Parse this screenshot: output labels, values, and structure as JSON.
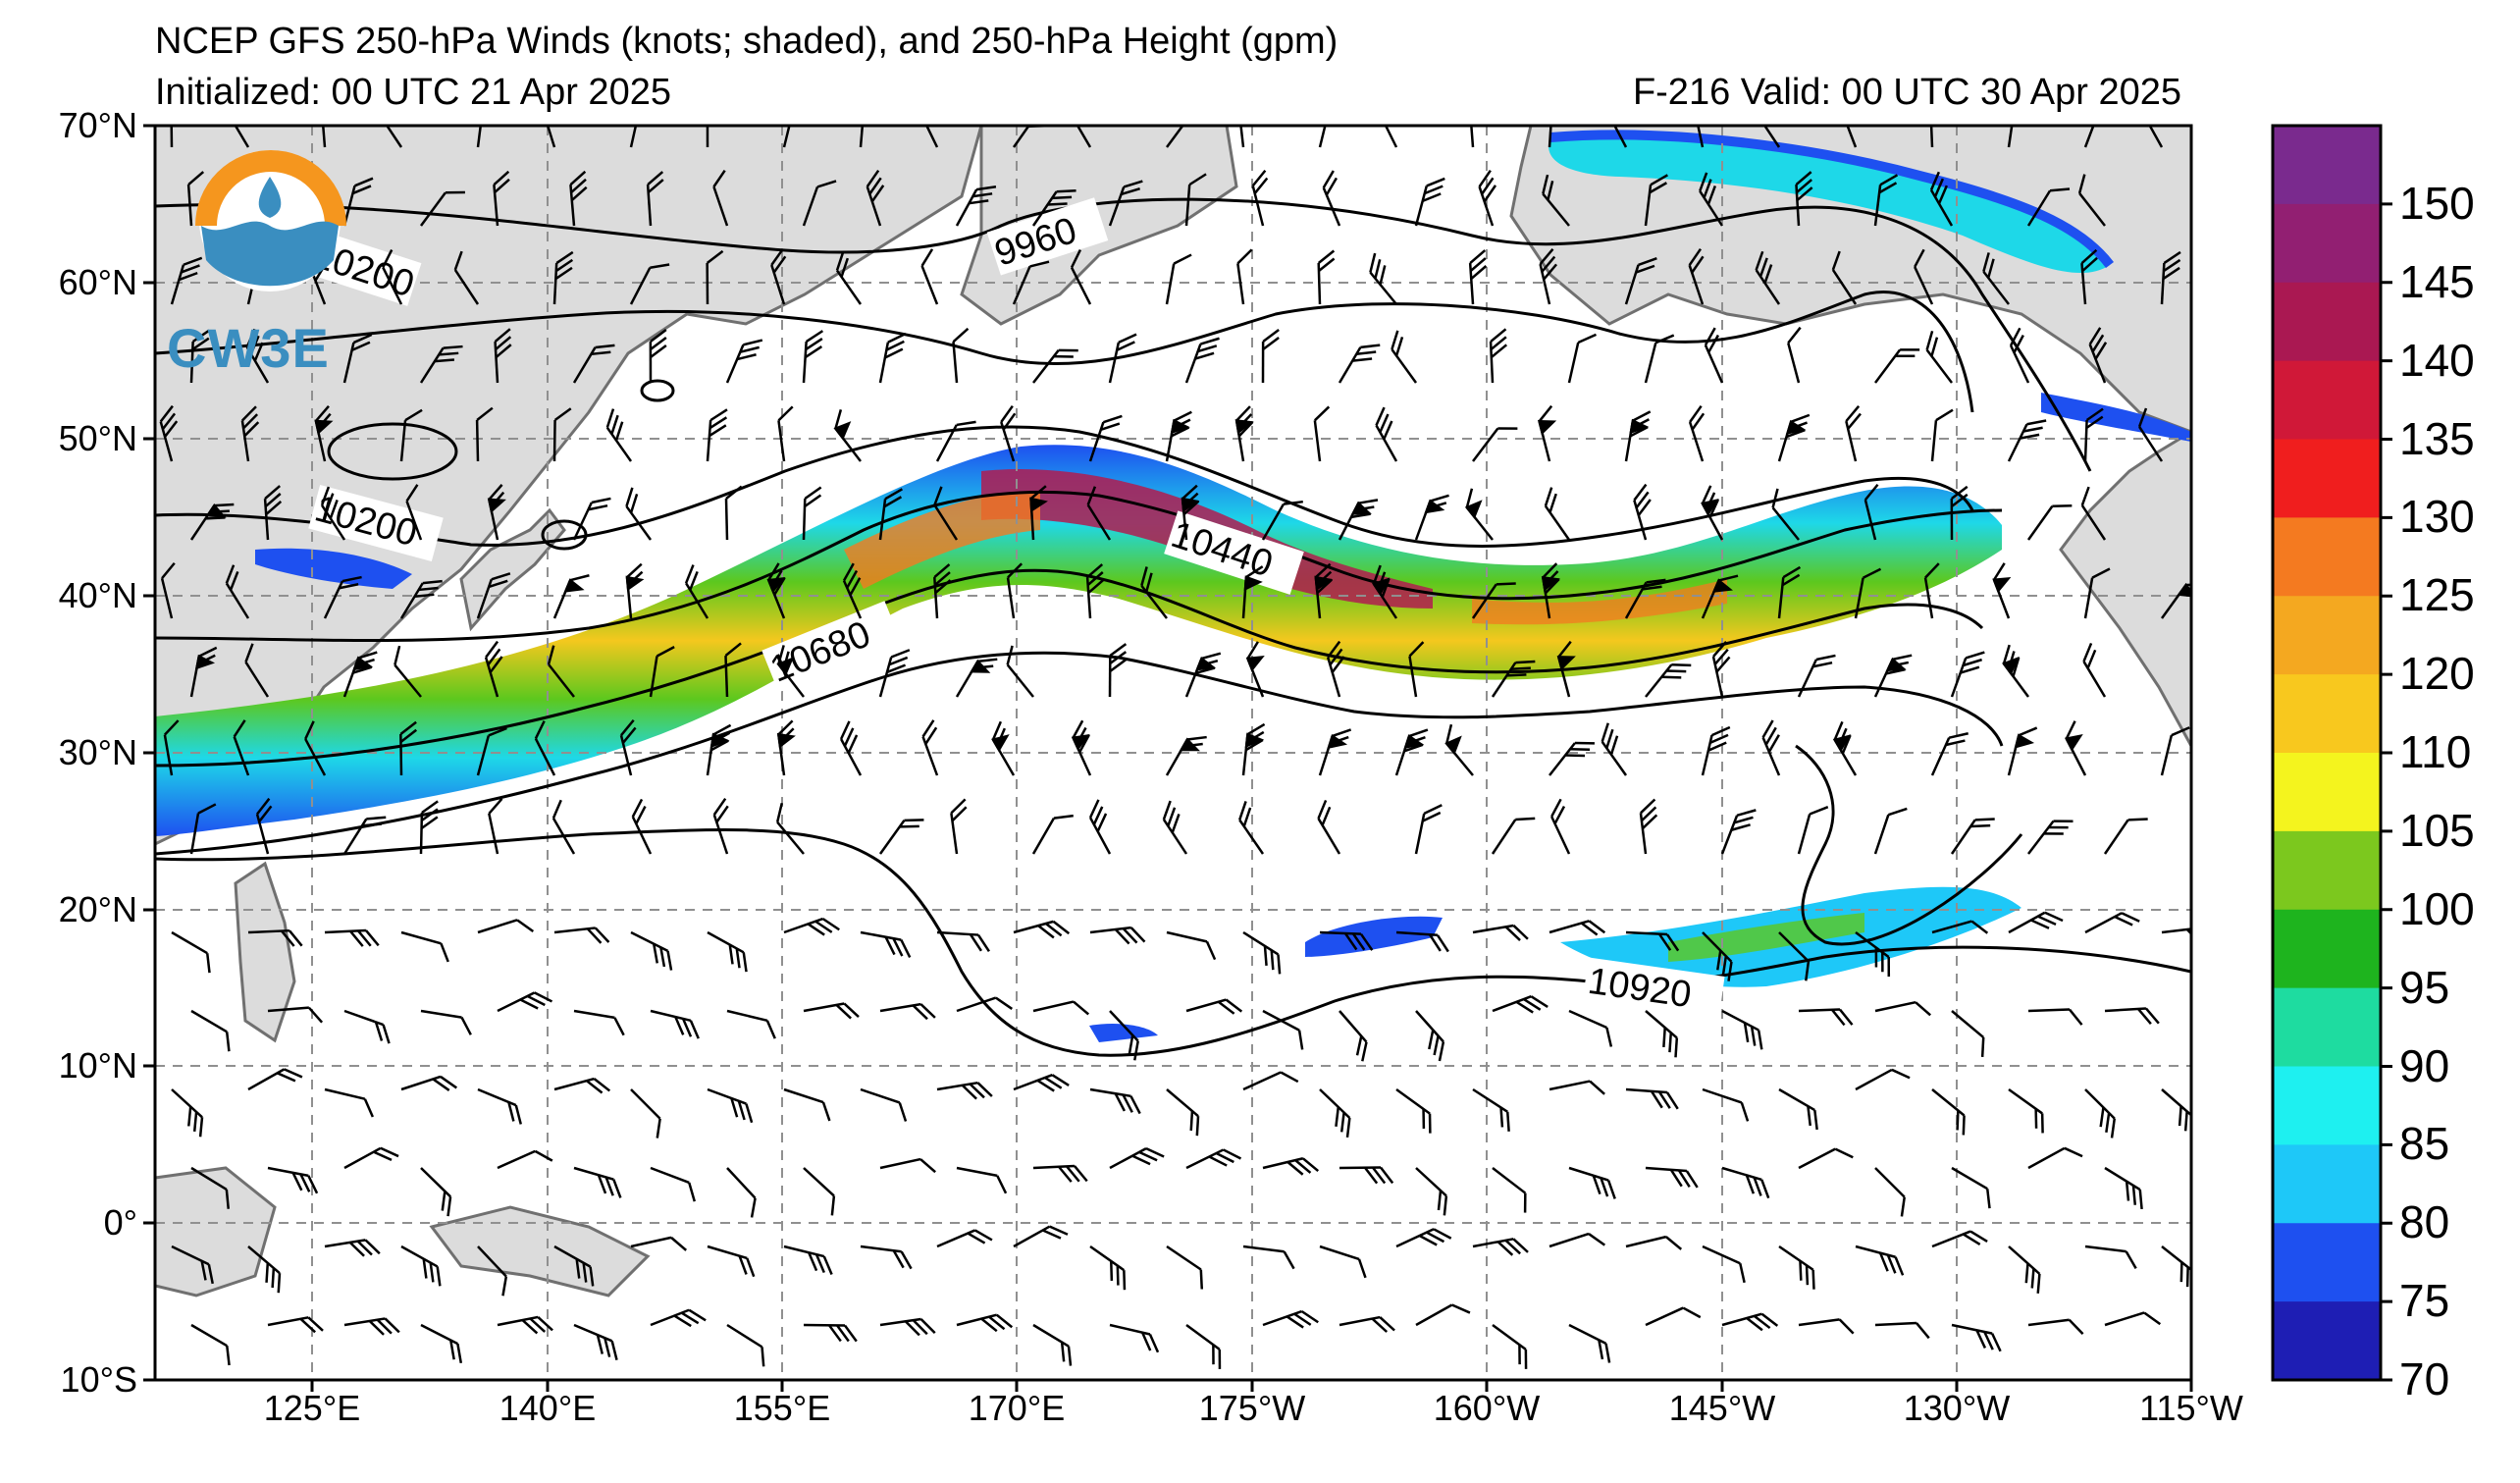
{
  "title": {
    "line1": "NCEP GFS 250-hPa Winds (knots; shaded), and 250-hPa Height (gpm)",
    "line2": "Initialized: 00 UTC 21 Apr 2025",
    "valid": "F-216  Valid: 00 UTC 30 Apr 2025"
  },
  "logo": {
    "text": "CW3E",
    "colors": {
      "ring": "#f5961e",
      "wave": "#3a8ec0"
    }
  },
  "map": {
    "lat_labels": [
      "70°N",
      "60°N",
      "50°N",
      "40°N",
      "30°N",
      "20°N",
      "10°N",
      "0°",
      "10°S"
    ],
    "lon_labels": [
      "125°E",
      "140°E",
      "155°E",
      "170°E",
      "175°W",
      "160°W",
      "145°W",
      "130°W",
      "115°W"
    ],
    "contour_labels": [
      "10200",
      "9960",
      "10200",
      "10440",
      "10680",
      "10920"
    ]
  },
  "colorbar": {
    "labels": [
      "150",
      "145",
      "140",
      "135",
      "130",
      "125",
      "120",
      "110",
      "105",
      "100",
      "95",
      "90",
      "85",
      "80",
      "75",
      "70"
    ],
    "colors": [
      "#7a2a8e",
      "#921f72",
      "#aa1852",
      "#d01838",
      "#f01e1e",
      "#f47a20",
      "#f4a820",
      "#f8c81e",
      "#f4f41e",
      "#7cc81e",
      "#1eb41e",
      "#1edca0",
      "#1ef0f0",
      "#1ec8f8",
      "#1e50f0",
      "#1e1eb4"
    ]
  }
}
